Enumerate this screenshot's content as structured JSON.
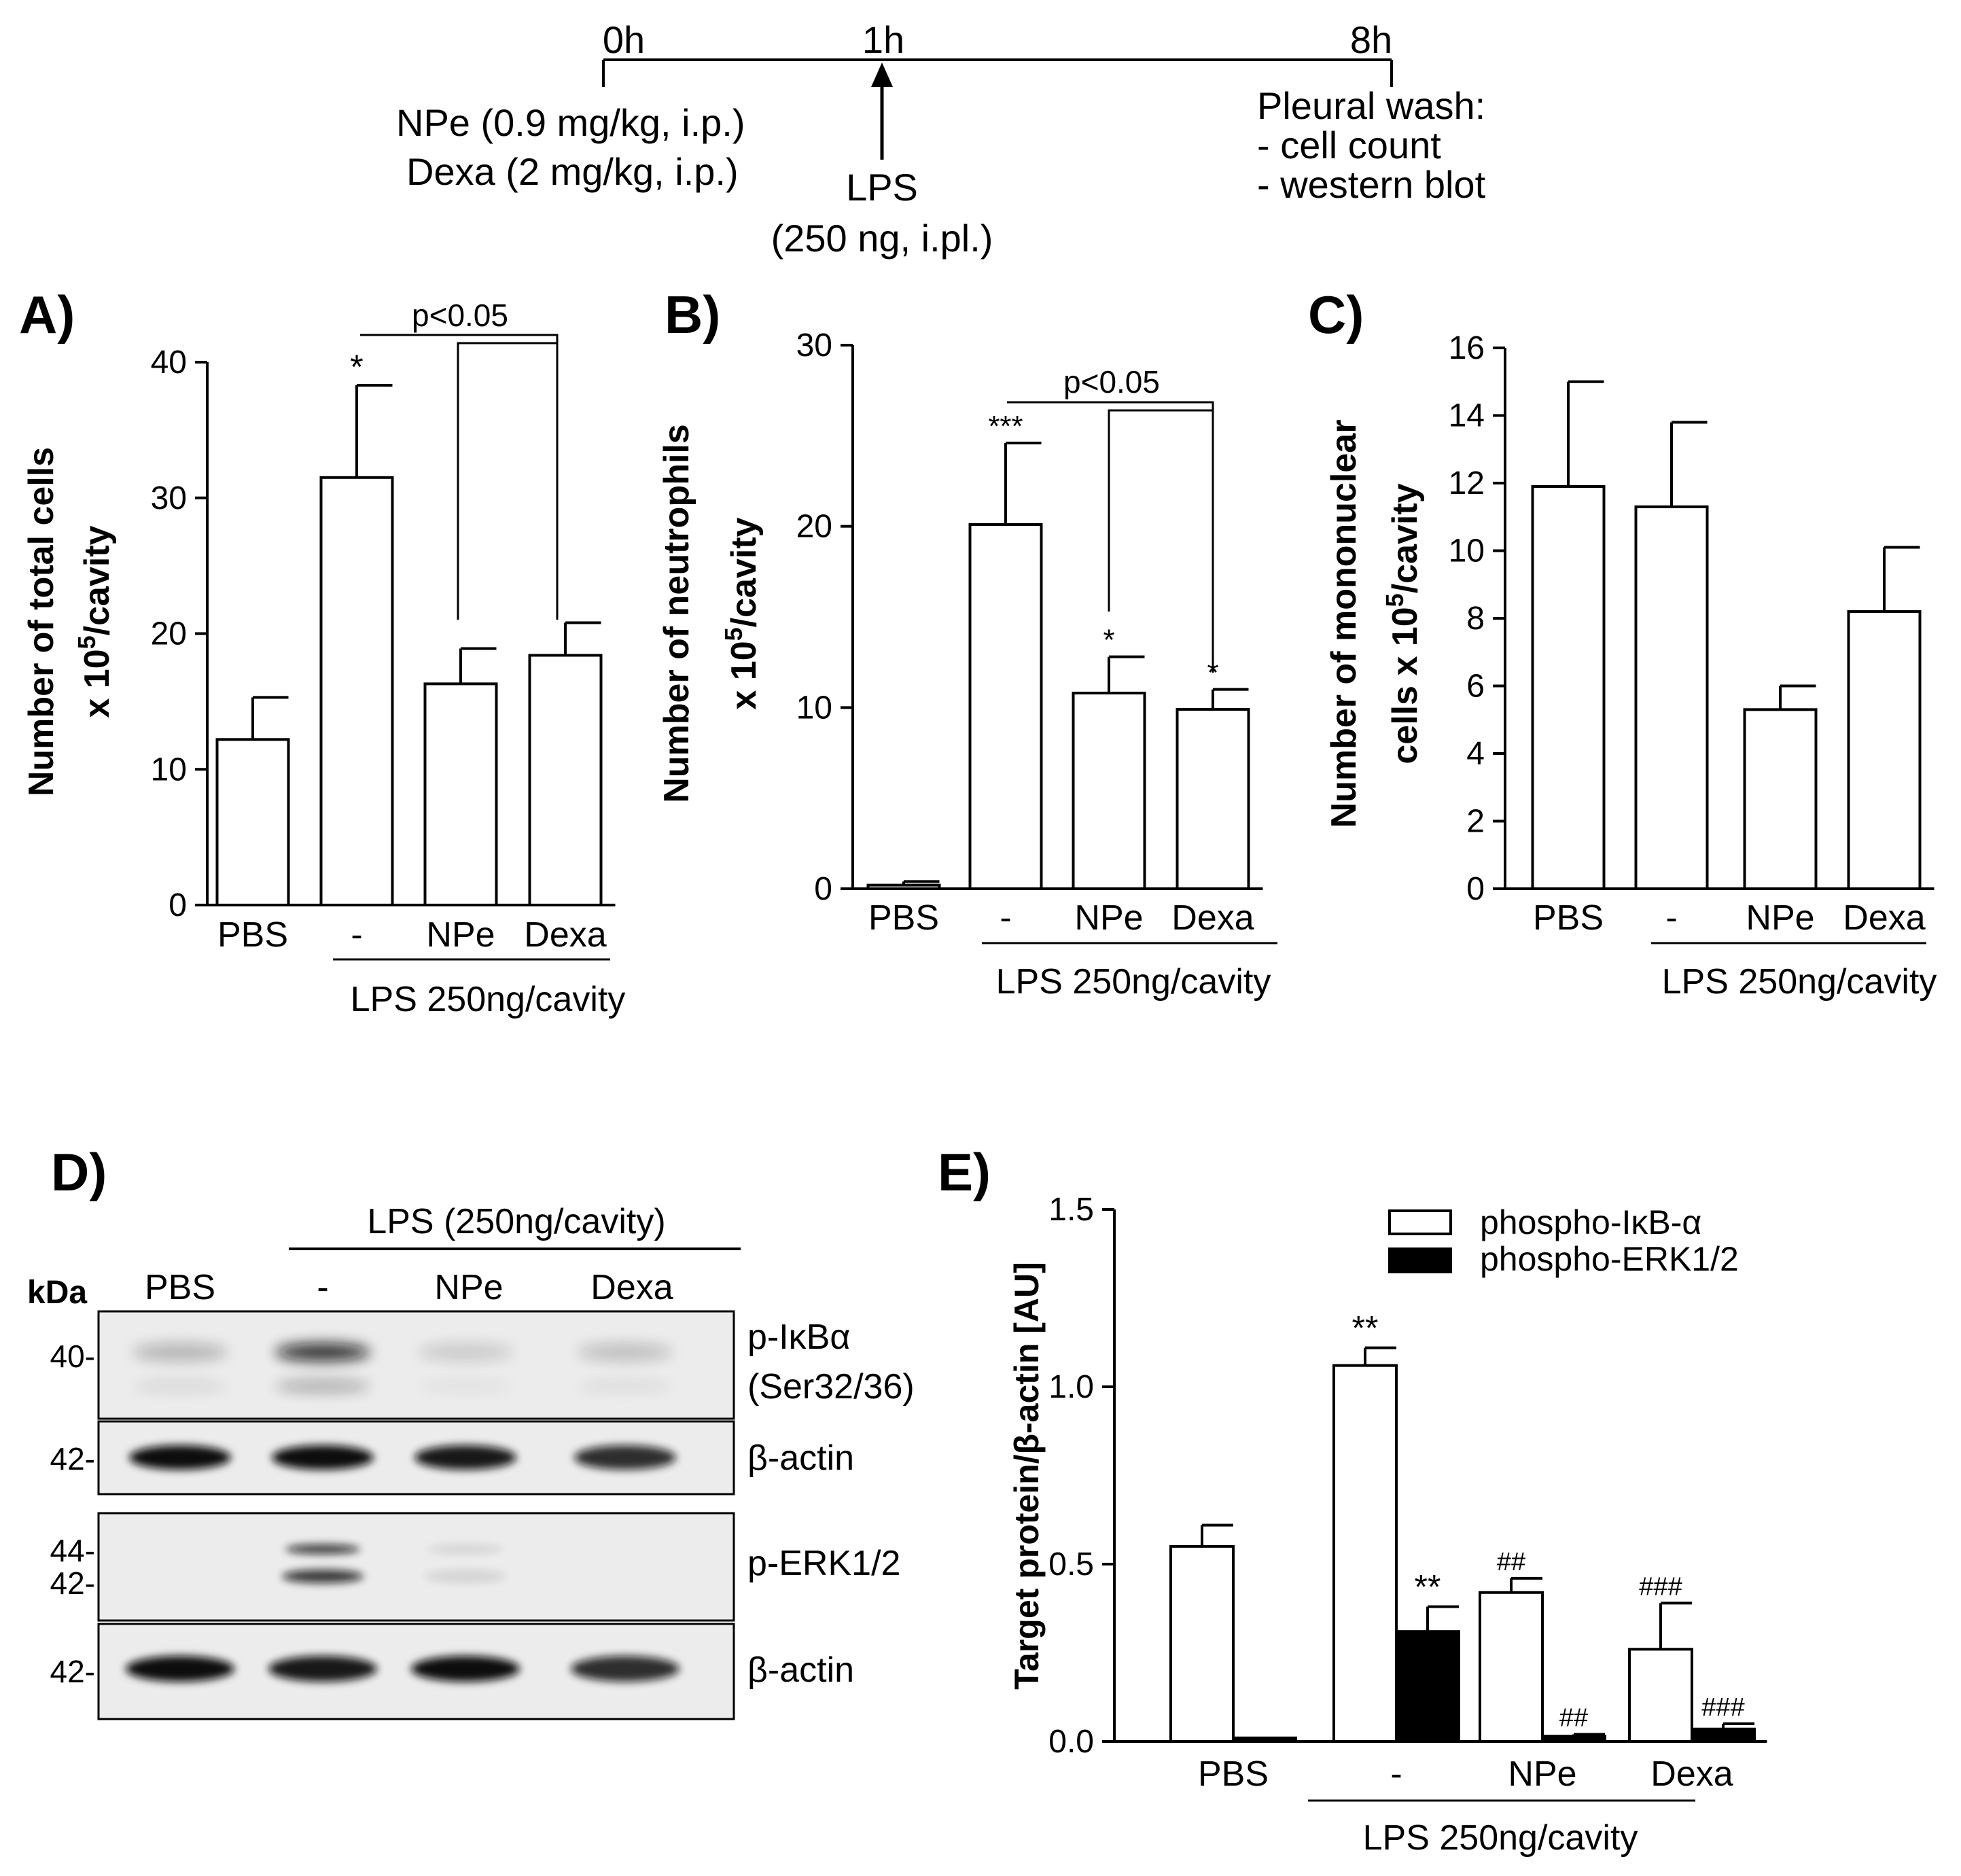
{
  "timeline": {
    "times": [
      "0h",
      "1h",
      "8h"
    ],
    "left_lines": [
      "NPe (0.9 mg/kg,  i.p.)",
      "Dexa (2 mg/kg,  i.p.)"
    ],
    "lps_lines": [
      "LPS",
      "(250 ng, i.pl.)"
    ],
    "right_lines": [
      "Pleural wash:",
      "- cell count",
      "- western blot"
    ]
  },
  "chart_data": [
    {
      "type": "bar",
      "panel": "A)",
      "categories": [
        "PBS",
        "-",
        "NPe",
        "Dexa"
      ],
      "values": [
        12.2,
        31.5,
        16.3,
        18.4
      ],
      "errors": [
        3.1,
        6.8,
        2.6,
        2.4
      ],
      "sig": [
        "",
        "*",
        "",
        ""
      ],
      "ylabel_lines": [
        "Number of total cells",
        "x 10",
        "5",
        "/cavity"
      ],
      "ylim": [
        0,
        40
      ],
      "yticks": [
        "0",
        "10",
        "20",
        "30",
        "40"
      ],
      "group_label": "LPS 250ng/cavity",
      "comparison_label": "p<0.05"
    },
    {
      "type": "bar",
      "panel": "B)",
      "categories": [
        "PBS",
        "-",
        "NPe",
        "Dexa"
      ],
      "values": [
        0.2,
        20.1,
        10.8,
        9.9
      ],
      "errors": [
        0.2,
        4.5,
        2.0,
        1.1
      ],
      "sig": [
        "",
        "***",
        "*",
        "*"
      ],
      "ylabel_lines": [
        "Number of neutrophils",
        "x 10",
        "5",
        "/cavity"
      ],
      "ylim": [
        0,
        30
      ],
      "yticks": [
        "0",
        "10",
        "20",
        "30"
      ],
      "group_label": "LPS 250ng/cavity",
      "comparison_label": "p<0.05"
    },
    {
      "type": "bar",
      "panel": "C)",
      "categories": [
        "PBS",
        "-",
        "NPe",
        "Dexa"
      ],
      "values": [
        11.9,
        11.3,
        5.3,
        8.2
      ],
      "errors": [
        3.1,
        2.5,
        0.7,
        1.9
      ],
      "sig": [
        "",
        "",
        "",
        ""
      ],
      "ylabel_lines": [
        "Number of mononuclear",
        "cells x 10",
        "5",
        "/cavity"
      ],
      "ylim": [
        0,
        16
      ],
      "yticks": [
        "0",
        "2",
        "4",
        "6",
        "8",
        "10",
        "12",
        "14",
        "16"
      ],
      "group_label": "LPS 250ng/cavity"
    },
    {
      "type": "bar",
      "panel": "E)",
      "categories": [
        "PBS",
        "-",
        "NPe",
        "Dexa"
      ],
      "series": [
        {
          "name": "phospho-IκB-α",
          "values": [
            0.55,
            1.06,
            0.42,
            0.26
          ],
          "errors": [
            0.06,
            0.05,
            0.04,
            0.13
          ],
          "sig": [
            "",
            "**",
            "##",
            "###"
          ],
          "color": "#ffffff"
        },
        {
          "name": "phospho-ERK1/2",
          "values": [
            0.01,
            0.31,
            0.015,
            0.035
          ],
          "errors": [
            0.0,
            0.07,
            0.005,
            0.015
          ],
          "sig": [
            "",
            "**",
            "##",
            "###"
          ],
          "color": "#000000"
        }
      ],
      "ylabel": "Target protein/β-actin [AU]",
      "ylim": [
        0,
        1.5
      ],
      "yticks": [
        "0.0",
        "0.5",
        "1.0",
        "1.5"
      ],
      "group_label": "LPS 250ng/cavity",
      "legend_position": "top-right"
    }
  ],
  "blot": {
    "panel": "D)",
    "header": "LPS (250ng/cavity)",
    "kda_label": "kDa",
    "lanes": [
      "PBS",
      "-",
      "NPe",
      "Dexa"
    ],
    "rows": [
      {
        "label_lines": [
          "p-IκBα",
          "(Ser32/36)"
        ],
        "markers": [
          "40-"
        ],
        "intensity": [
          0.25,
          0.85,
          0.15,
          0.2
        ]
      },
      {
        "label_lines": [
          "β-actin"
        ],
        "markers": [
          "42-"
        ],
        "intensity": [
          1.0,
          1.0,
          0.95,
          0.85
        ]
      },
      {
        "label_lines": [
          "p-ERK1/2"
        ],
        "markers": [
          "44-",
          "42-"
        ],
        "intensity": [
          0.0,
          0.8,
          0.1,
          0.0
        ]
      },
      {
        "label_lines": [
          "β-actin"
        ],
        "markers": [
          "42-"
        ],
        "intensity": [
          1.0,
          0.95,
          1.0,
          0.85
        ]
      }
    ]
  }
}
